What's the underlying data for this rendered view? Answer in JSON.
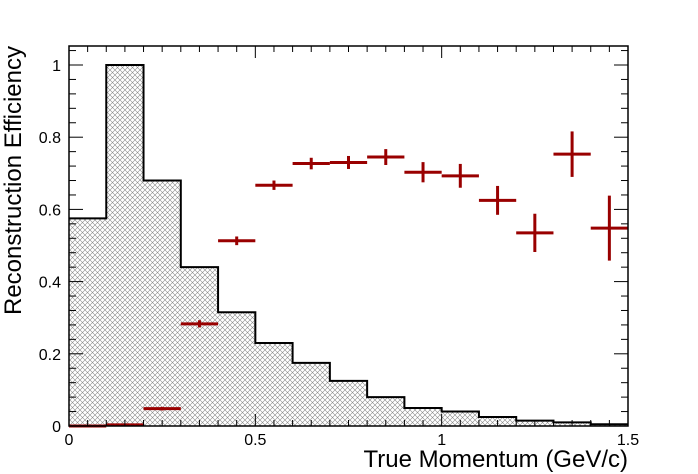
{
  "chart_data": {
    "type": "histogram+errorbar",
    "xlabel": "True Momentum (GeV/c)",
    "ylabel": "Reconstruction Efficiency",
    "xlim": [
      0,
      1.5
    ],
    "ylim": [
      0,
      1.05
    ],
    "x_ticks": [
      {
        "value": 0,
        "label": "0"
      },
      {
        "value": 0.5,
        "label": "0.5"
      },
      {
        "value": 1,
        "label": "1"
      },
      {
        "value": 1.5,
        "label": "1.5"
      }
    ],
    "y_ticks": [
      {
        "value": 0,
        "label": "0"
      },
      {
        "value": 0.2,
        "label": "0.2"
      },
      {
        "value": 0.4,
        "label": "0.4"
      },
      {
        "value": 0.6,
        "label": "0.6"
      },
      {
        "value": 0.8,
        "label": "0.8"
      },
      {
        "value": 1,
        "label": "1"
      }
    ],
    "bin_edges": [
      0,
      0.1,
      0.2,
      0.3,
      0.4,
      0.5,
      0.6,
      0.7,
      0.8,
      0.9,
      1.0,
      1.1,
      1.2,
      1.3,
      1.4,
      1.5
    ],
    "histogram": {
      "color": "#000000",
      "fill": "hatched",
      "values": [
        0.575,
        1.0,
        0.68,
        0.44,
        0.315,
        0.23,
        0.175,
        0.125,
        0.08,
        0.05,
        0.04,
        0.025,
        0.015,
        0.01,
        0.005
      ]
    },
    "efficiency": {
      "color": "#990000",
      "points": [
        {
          "x": 0.05,
          "y": 0.0,
          "xerr": 0.05,
          "yerr": 0.002
        },
        {
          "x": 0.15,
          "y": 0.003,
          "xerr": 0.05,
          "yerr": 0.002
        },
        {
          "x": 0.25,
          "y": 0.048,
          "xerr": 0.05,
          "yerr": 0.005
        },
        {
          "x": 0.35,
          "y": 0.283,
          "xerr": 0.05,
          "yerr": 0.01
        },
        {
          "x": 0.45,
          "y": 0.513,
          "xerr": 0.05,
          "yerr": 0.012
        },
        {
          "x": 0.55,
          "y": 0.667,
          "xerr": 0.05,
          "yerr": 0.013
        },
        {
          "x": 0.65,
          "y": 0.727,
          "xerr": 0.05,
          "yerr": 0.016
        },
        {
          "x": 0.75,
          "y": 0.73,
          "xerr": 0.05,
          "yerr": 0.018
        },
        {
          "x": 0.85,
          "y": 0.745,
          "xerr": 0.05,
          "yerr": 0.022
        },
        {
          "x": 0.95,
          "y": 0.703,
          "xerr": 0.05,
          "yerr": 0.028
        },
        {
          "x": 1.05,
          "y": 0.693,
          "xerr": 0.05,
          "yerr": 0.033
        },
        {
          "x": 1.15,
          "y": 0.625,
          "xerr": 0.05,
          "yerr": 0.04
        },
        {
          "x": 1.25,
          "y": 0.535,
          "xerr": 0.05,
          "yerr": 0.053
        },
        {
          "x": 1.35,
          "y": 0.753,
          "xerr": 0.05,
          "yerr": 0.063
        },
        {
          "x": 1.45,
          "y": 0.548,
          "xerr": 0.05,
          "yerr": 0.09
        }
      ]
    },
    "grid": false,
    "legend": "none"
  }
}
